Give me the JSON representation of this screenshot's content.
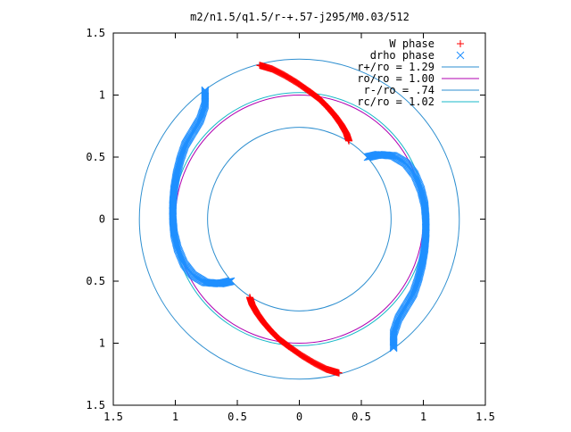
{
  "chart_data": {
    "type": "scatter",
    "title": "m2/n1.5/q1.5/r-+.57-j295/M0.03/512",
    "xlim": [
      -1.5,
      1.5
    ],
    "ylim": [
      -1.5,
      1.5
    ],
    "xticks": [
      {
        "v": -1.5,
        "label": "1.5"
      },
      {
        "v": -1,
        "label": "1"
      },
      {
        "v": -0.5,
        "label": "0.5"
      },
      {
        "v": 0,
        "label": "0"
      },
      {
        "v": 0.5,
        "label": "0.5"
      },
      {
        "v": 1,
        "label": "1"
      },
      {
        "v": 1.5,
        "label": "1.5"
      }
    ],
    "yticks": [
      {
        "v": 1.5,
        "label": "1.5"
      },
      {
        "v": 1,
        "label": "1"
      },
      {
        "v": 0.5,
        "label": "0.5"
      },
      {
        "v": 0,
        "label": "0"
      },
      {
        "v": -0.5,
        "label": "0.5"
      },
      {
        "v": -1,
        "label": "1"
      },
      {
        "v": -1.5,
        "label": "1.5"
      }
    ],
    "legend_position": "top-right",
    "circles": [
      {
        "name": "r+/ro = 1.29",
        "radius": 1.29,
        "color": "#2e8fd0"
      },
      {
        "name": "ro/ro = 1.00",
        "radius": 1.0,
        "color": "#b000b0"
      },
      {
        "name": "r-/ro = .74",
        "radius": 0.74,
        "color": "#2e8fd0"
      },
      {
        "name": "rc/ro = 1.02",
        "radius": 1.02,
        "color": "#18b8c8"
      }
    ],
    "series": [
      {
        "name": "W phase",
        "marker": "plus",
        "color": "#ff0000",
        "points": [
          [
            -0.32,
            1.24
          ],
          [
            -0.22,
            1.21
          ],
          [
            -0.12,
            1.16
          ],
          [
            -0.02,
            1.1
          ],
          [
            0.08,
            1.03
          ],
          [
            0.16,
            0.97
          ],
          [
            0.23,
            0.9
          ],
          [
            0.29,
            0.83
          ],
          [
            0.34,
            0.76
          ],
          [
            0.38,
            0.69
          ],
          [
            0.4,
            0.63
          ],
          [
            0.32,
            -1.24
          ],
          [
            0.22,
            -1.21
          ],
          [
            0.12,
            -1.16
          ],
          [
            0.02,
            -1.1
          ],
          [
            -0.08,
            -1.03
          ],
          [
            -0.16,
            -0.97
          ],
          [
            -0.23,
            -0.9
          ],
          [
            -0.29,
            -0.83
          ],
          [
            -0.34,
            -0.76
          ],
          [
            -0.38,
            -0.69
          ],
          [
            -0.4,
            -0.63
          ]
        ]
      },
      {
        "name": "drho phase",
        "marker": "cross",
        "color": "#1f8fff",
        "points": [
          [
            -0.76,
            1.04
          ],
          [
            -0.76,
            0.92
          ],
          [
            -0.8,
            0.8
          ],
          [
            -0.86,
            0.7
          ],
          [
            -0.92,
            0.6
          ],
          [
            -0.96,
            0.48
          ],
          [
            -0.99,
            0.36
          ],
          [
            -1.01,
            0.24
          ],
          [
            -1.02,
            0.12
          ],
          [
            -1.02,
            0.0
          ],
          [
            -1.01,
            -0.12
          ],
          [
            -0.98,
            -0.24
          ],
          [
            -0.93,
            -0.36
          ],
          [
            -0.86,
            -0.45
          ],
          [
            -0.76,
            -0.51
          ],
          [
            -0.64,
            -0.52
          ],
          [
            -0.55,
            -0.5
          ],
          [
            0.76,
            -1.04
          ],
          [
            0.76,
            -0.92
          ],
          [
            0.8,
            -0.8
          ],
          [
            0.86,
            -0.7
          ],
          [
            0.92,
            -0.6
          ],
          [
            0.96,
            -0.48
          ],
          [
            0.99,
            -0.36
          ],
          [
            1.01,
            -0.24
          ],
          [
            1.02,
            -0.12
          ],
          [
            1.02,
            0.0
          ],
          [
            1.01,
            0.12
          ],
          [
            0.98,
            0.24
          ],
          [
            0.93,
            0.36
          ],
          [
            0.86,
            0.45
          ],
          [
            0.76,
            0.51
          ],
          [
            0.64,
            0.52
          ],
          [
            0.55,
            0.5
          ]
        ]
      }
    ]
  }
}
